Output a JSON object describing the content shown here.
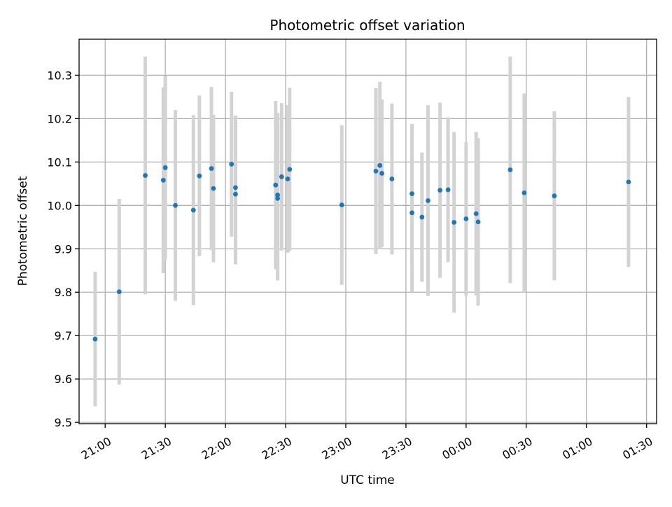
{
  "chart_data": {
    "type": "scatter",
    "title": "Photometric offset variation",
    "xlabel": "UTC time",
    "ylabel": "Photometric offset",
    "x_axis_kind": "time",
    "xlim": [
      "20:47",
      "01:35"
    ],
    "ylim": [
      9.497,
      10.383
    ],
    "xticks": [
      "21:00",
      "21:30",
      "22:00",
      "22:30",
      "23:00",
      "23:30",
      "00:00",
      "00:30",
      "01:00",
      "01:30"
    ],
    "yticks": [
      9.5,
      9.6,
      9.7,
      9.8,
      9.9,
      10.0,
      10.1,
      10.2,
      10.3
    ],
    "ytick_labels": [
      "9.5",
      "9.6",
      "9.7",
      "9.8",
      "9.9",
      "10.0",
      "10.1",
      "10.2",
      "10.3"
    ],
    "grid": true,
    "colors": {
      "point": "#1f77b4",
      "errorbar": "#d3d3d3",
      "grid": "#b0b0b0"
    },
    "points": [
      {
        "x": "20:55",
        "y": 9.692,
        "err": 0.155
      },
      {
        "x": "21:07",
        "y": 9.801,
        "err": 0.214
      },
      {
        "x": "21:20",
        "y": 10.069,
        "err": 0.274
      },
      {
        "x": "21:29",
        "y": 10.058,
        "err": 0.214
      },
      {
        "x": "21:30",
        "y": 10.087,
        "err": 0.212
      },
      {
        "x": "21:35",
        "y": 10.0,
        "err": 0.22
      },
      {
        "x": "21:44",
        "y": 9.989,
        "err": 0.219
      },
      {
        "x": "21:47",
        "y": 10.068,
        "err": 0.185
      },
      {
        "x": "21:53",
        "y": 10.085,
        "err": 0.188
      },
      {
        "x": "21:54",
        "y": 10.039,
        "err": 0.17
      },
      {
        "x": "22:03",
        "y": 10.095,
        "err": 0.167
      },
      {
        "x": "22:05",
        "y": 10.041,
        "err": 0.166
      },
      {
        "x": "22:05",
        "y": 10.026,
        "err": 0.162
      },
      {
        "x": "22:25",
        "y": 10.047,
        "err": 0.194
      },
      {
        "x": "22:26",
        "y": 10.016,
        "err": 0.189
      },
      {
        "x": "22:26",
        "y": 10.024,
        "err": 0.189
      },
      {
        "x": "22:28",
        "y": 10.066,
        "err": 0.17
      },
      {
        "x": "22:31",
        "y": 10.061,
        "err": 0.17
      },
      {
        "x": "22:32",
        "y": 10.083,
        "err": 0.188
      },
      {
        "x": "22:58",
        "y": 10.001,
        "err": 0.184
      },
      {
        "x": "23:15",
        "y": 10.079,
        "err": 0.191
      },
      {
        "x": "23:17",
        "y": 10.092,
        "err": 0.193
      },
      {
        "x": "23:18",
        "y": 10.074,
        "err": 0.17
      },
      {
        "x": "23:23",
        "y": 10.061,
        "err": 0.174
      },
      {
        "x": "23:33",
        "y": 10.027,
        "err": 0.161
      },
      {
        "x": "23:33",
        "y": 9.983,
        "err": 0.182
      },
      {
        "x": "23:38",
        "y": 9.973,
        "err": 0.149
      },
      {
        "x": "23:41",
        "y": 10.011,
        "err": 0.22
      },
      {
        "x": "23:47",
        "y": 10.035,
        "err": 0.202
      },
      {
        "x": "23:51",
        "y": 10.036,
        "err": 0.167
      },
      {
        "x": "23:54",
        "y": 9.961,
        "err": 0.208
      },
      {
        "x": "00:00",
        "y": 9.969,
        "err": 0.177
      },
      {
        "x": "00:05",
        "y": 9.981,
        "err": 0.188
      },
      {
        "x": "00:06",
        "y": 9.962,
        "err": 0.193
      },
      {
        "x": "00:22",
        "y": 10.082,
        "err": 0.261
      },
      {
        "x": "00:29",
        "y": 10.029,
        "err": 0.229
      },
      {
        "x": "00:44",
        "y": 10.022,
        "err": 0.195
      },
      {
        "x": "01:21",
        "y": 10.054,
        "err": 0.196
      }
    ]
  }
}
